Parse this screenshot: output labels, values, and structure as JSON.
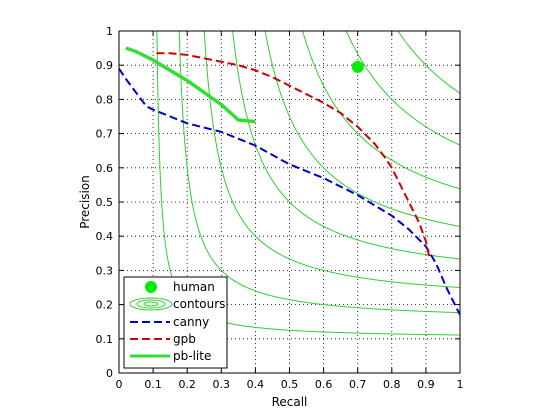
{
  "chart_data": {
    "type": "line",
    "title": "",
    "xlabel": "Recall",
    "ylabel": "Precision",
    "xlim": [
      0,
      1
    ],
    "ylim": [
      0,
      1
    ],
    "xticks": [
      "0",
      "0.1",
      "0.2",
      "0.3",
      "0.4",
      "0.5",
      "0.6",
      "0.7",
      "0.8",
      "0.9",
      "1"
    ],
    "yticks": [
      "0",
      "0.1",
      "0.2",
      "0.3",
      "0.4",
      "0.5",
      "0.6",
      "0.7",
      "0.8",
      "0.9",
      "1"
    ],
    "grid": true,
    "grid_style": "dotted",
    "legend_position": "bottom-left",
    "contour_levels": [
      0.2,
      0.3,
      0.4,
      0.5,
      0.6,
      0.7,
      0.8,
      0.9
    ],
    "contour_color": "#33cc33",
    "series": [
      {
        "name": "human",
        "kind": "marker",
        "color": "#00ee00",
        "x": [
          0.7
        ],
        "y": [
          0.895
        ]
      },
      {
        "name": "contours",
        "kind": "contour-legend",
        "color": "#33cc33",
        "x": [],
        "y": []
      },
      {
        "name": "canny",
        "kind": "dashed-line",
        "color": "#0000cc",
        "x": [
          0.0,
          0.02,
          0.05,
          0.08,
          0.1,
          0.15,
          0.2,
          0.3,
          0.4,
          0.5,
          0.6,
          0.7,
          0.75,
          0.8,
          0.85,
          0.9,
          0.93,
          0.96,
          1.0
        ],
        "y": [
          0.89,
          0.86,
          0.82,
          0.78,
          0.77,
          0.75,
          0.73,
          0.705,
          0.665,
          0.61,
          0.57,
          0.52,
          0.49,
          0.46,
          0.42,
          0.37,
          0.32,
          0.25,
          0.17
        ]
      },
      {
        "name": "gpb",
        "kind": "dashed-line",
        "color": "#cc0000",
        "x": [
          0.11,
          0.15,
          0.2,
          0.25,
          0.3,
          0.35,
          0.4,
          0.45,
          0.5,
          0.55,
          0.6,
          0.65,
          0.7,
          0.75,
          0.78,
          0.8,
          0.82,
          0.84,
          0.86,
          0.88,
          0.9,
          0.91
        ],
        "y": [
          0.935,
          0.935,
          0.93,
          0.92,
          0.91,
          0.9,
          0.885,
          0.865,
          0.84,
          0.815,
          0.79,
          0.76,
          0.72,
          0.67,
          0.63,
          0.6,
          0.56,
          0.52,
          0.48,
          0.44,
          0.385,
          0.34
        ]
      },
      {
        "name": "pb-lite",
        "kind": "solid-line",
        "color": "#33dd33",
        "x": [
          0.02,
          0.05,
          0.1,
          0.15,
          0.2,
          0.25,
          0.3,
          0.35,
          0.4
        ],
        "y": [
          0.95,
          0.94,
          0.915,
          0.885,
          0.855,
          0.82,
          0.785,
          0.74,
          0.735
        ]
      }
    ]
  }
}
